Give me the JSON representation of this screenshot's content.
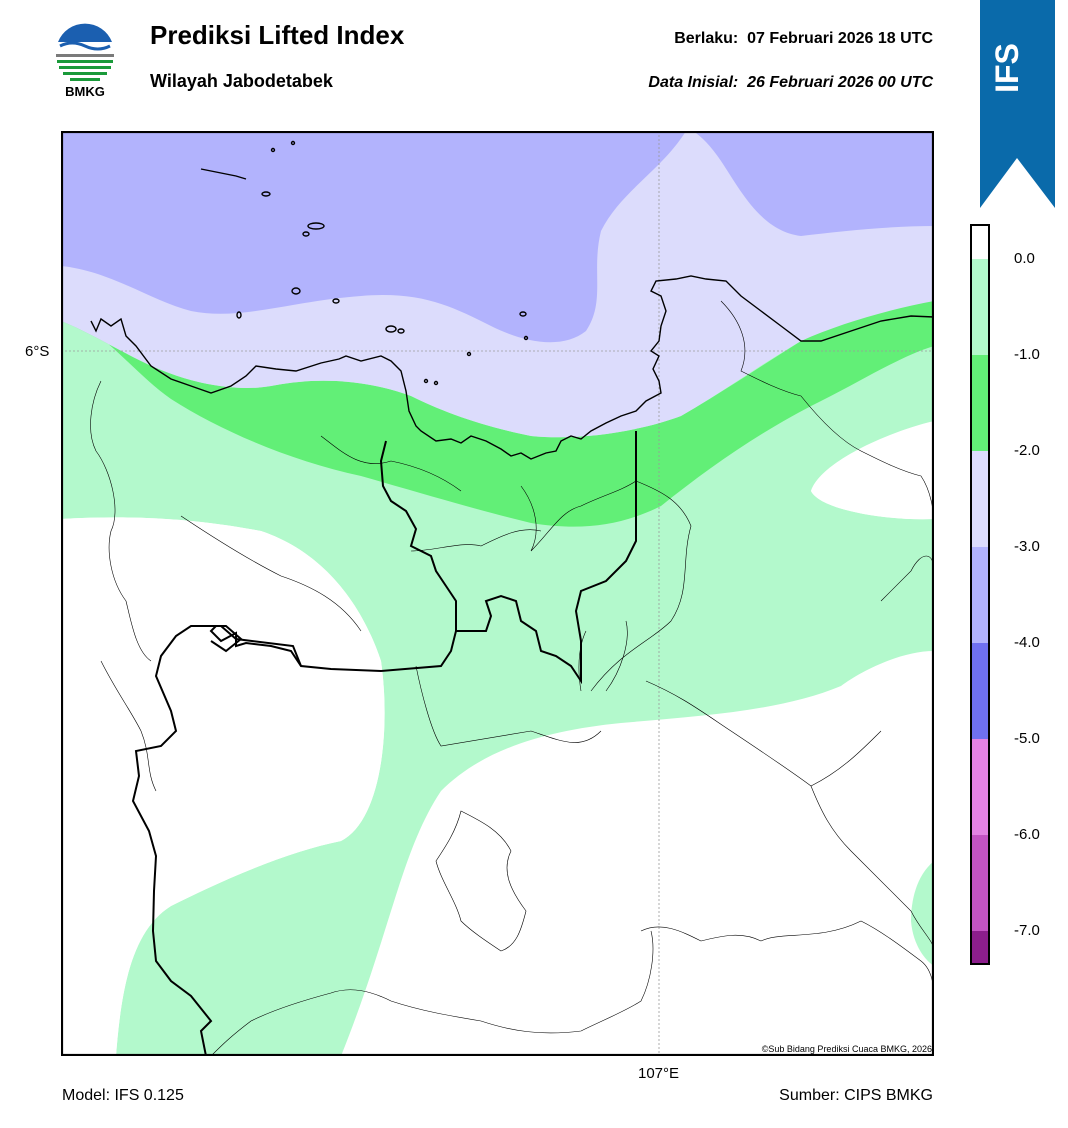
{
  "header": {
    "title": "Prediksi Lifted Index",
    "subtitle": "Wilayah Jabodetabek",
    "valid_label": "Berlaku:",
    "valid_value": "07 Februari 2026 18 UTC",
    "init_label": "Data Inisial:",
    "init_value": "26 Februari 2026 00 UTC"
  },
  "logo": {
    "text": "BMKG",
    "icon": "bmkg-logo"
  },
  "ribbon": {
    "text": "IFS",
    "color": "#0a6aaa"
  },
  "map": {
    "lat_label": "6°S",
    "lon_label": "107°E",
    "credit": "©Sub Bidang Prediksi Cuaca BMKG, 2026"
  },
  "colorbar": {
    "ticks": [
      "0.0",
      "-1.0",
      "-2.0",
      "-3.0",
      "-4.0",
      "-5.0",
      "-6.0",
      "-7.0"
    ],
    "levels": [
      {
        "value": "0 to -1",
        "color": "#b3f9cc"
      },
      {
        "value": "-1 to -2",
        "color": "#62ef77"
      },
      {
        "value": "-2 to -3",
        "color": "#dcdcfc"
      },
      {
        "value": "-3 to -4",
        "color": "#b2b3fd"
      },
      {
        "value": "-4 to -5",
        "color": "#6f70f1"
      },
      {
        "value": "-5 to -6",
        "color": "#e383e3"
      },
      {
        "value": "-6 to -7",
        "color": "#c354c3"
      },
      {
        "value": "< -7",
        "color": "#8c1e8c"
      }
    ]
  },
  "footer": {
    "model": "Model: IFS 0.125",
    "source": "Sumber: CIPS BMKG"
  }
}
